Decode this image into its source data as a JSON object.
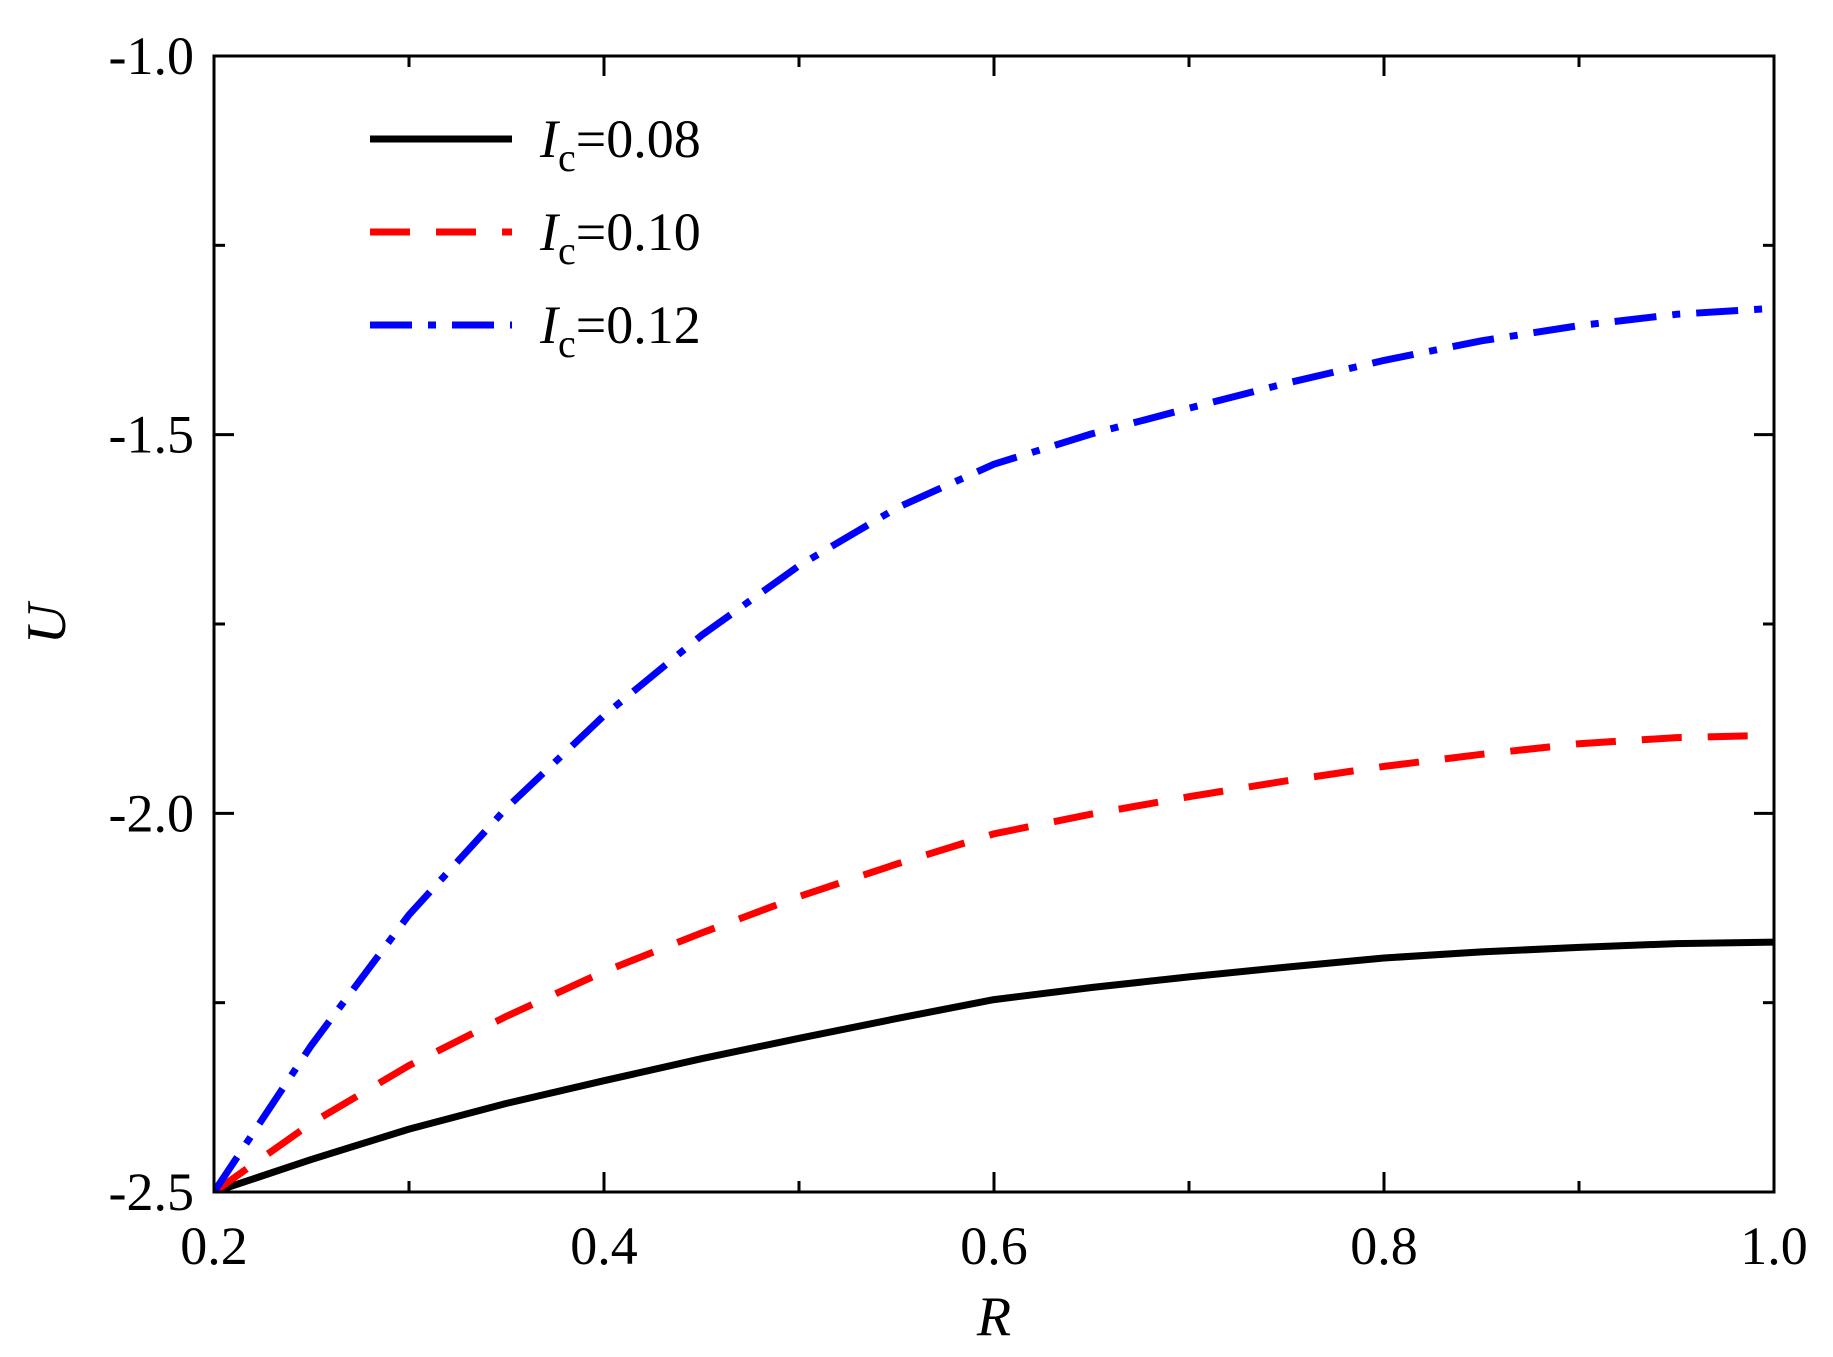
{
  "chart_data": {
    "type": "line",
    "xlabel": "R",
    "ylabel": "U",
    "xlim": [
      0.2,
      1.0
    ],
    "ylim": [
      -2.5,
      -1.0
    ],
    "xticks": [
      "0.2",
      "0.4",
      "0.6",
      "0.8",
      "1.0"
    ],
    "yticks": [
      "-1.0",
      "-1.5",
      "-2.0",
      "-2.5"
    ],
    "grid": false,
    "legend_position": "top-left",
    "series": [
      {
        "name": "Ic=0.08",
        "name_main": "I",
        "name_sub": "c",
        "name_value": "=0.08",
        "color": "#000000",
        "dash": "solid",
        "x": [
          0.2,
          0.25,
          0.3,
          0.35,
          0.4,
          0.45,
          0.5,
          0.55,
          0.6,
          0.65,
          0.7,
          0.75,
          0.8,
          0.85,
          0.9,
          0.95,
          1.0
        ],
        "y": [
          -2.5,
          -2.457,
          -2.417,
          -2.383,
          -2.353,
          -2.324,
          -2.297,
          -2.271,
          -2.246,
          -2.23,
          -2.216,
          -2.203,
          -2.191,
          -2.183,
          -2.177,
          -2.172,
          -2.17
        ]
      },
      {
        "name": "Ic=0.10",
        "name_main": "I",
        "name_sub": "c",
        "name_value": "=0.10",
        "color": "#ff0000",
        "dash": "dashed",
        "x": [
          0.2,
          0.25,
          0.3,
          0.35,
          0.4,
          0.45,
          0.5,
          0.55,
          0.6,
          0.65,
          0.7,
          0.75,
          0.8,
          0.85,
          0.9,
          0.95,
          1.0
        ],
        "y": [
          -2.5,
          -2.409,
          -2.333,
          -2.268,
          -2.209,
          -2.158,
          -2.11,
          -2.067,
          -2.027,
          -2.001,
          -1.978,
          -1.957,
          -1.938,
          -1.922,
          -1.908,
          -1.9,
          -1.897
        ]
      },
      {
        "name": "Ic=0.12",
        "name_main": "I",
        "name_sub": "c",
        "name_value": "=0.12",
        "color": "#0000ff",
        "dash": "dashdot",
        "x": [
          0.2,
          0.25,
          0.3,
          0.35,
          0.4,
          0.45,
          0.5,
          0.55,
          0.6,
          0.65,
          0.7,
          0.75,
          0.8,
          0.85,
          0.9,
          0.95,
          1.0
        ],
        "y": [
          -2.5,
          -2.306,
          -2.134,
          -1.993,
          -1.871,
          -1.765,
          -1.673,
          -1.597,
          -1.539,
          -1.499,
          -1.465,
          -1.432,
          -1.402,
          -1.376,
          -1.356,
          -1.341,
          -1.333
        ]
      }
    ]
  }
}
